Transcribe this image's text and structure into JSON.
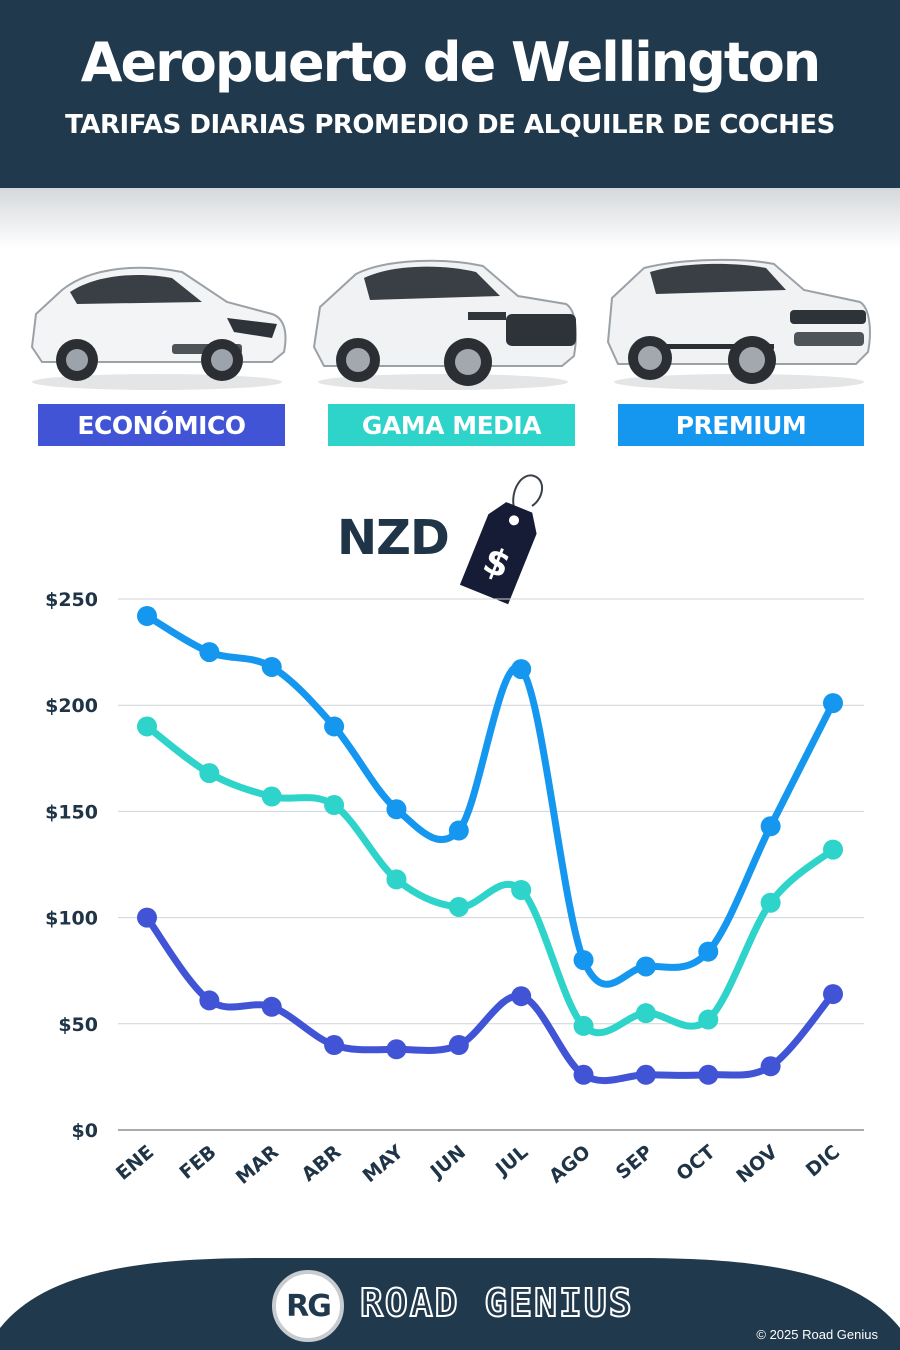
{
  "header": {
    "title": "Aeropuerto de Wellington",
    "subtitle": "TARIFAS DIARIAS PROMEDIO DE ALQUILER DE COCHES"
  },
  "categories": [
    {
      "label": "ECONÓMICO",
      "color": "#4154d6"
    },
    {
      "label": "GAMA MEDIA",
      "color": "#2ed3c9"
    },
    {
      "label": "PREMIUM",
      "color": "#1597f0"
    }
  ],
  "currency": {
    "label": "NZD",
    "tag_symbol": "$"
  },
  "chart_data": {
    "type": "line",
    "x": [
      "ENE",
      "FEB",
      "MAR",
      "ABR",
      "MAY",
      "JUN",
      "JUL",
      "AGO",
      "SEP",
      "OCT",
      "NOV",
      "DIC"
    ],
    "yticks": [
      "$0",
      "$50",
      "$100",
      "$150",
      "$200",
      "$250"
    ],
    "ylim": [
      0,
      250
    ],
    "grid": true,
    "series": [
      {
        "name": "PREMIUM",
        "color": "#1597f0",
        "values": [
          242,
          225,
          218,
          190,
          151,
          141,
          217,
          80,
          77,
          84,
          143,
          201
        ]
      },
      {
        "name": "GAMA MEDIA",
        "color": "#2ed3c9",
        "values": [
          190,
          168,
          157,
          153,
          118,
          105,
          113,
          49,
          55,
          52,
          107,
          132
        ]
      },
      {
        "name": "ECONÓMICO",
        "color": "#4154d6",
        "values": [
          100,
          61,
          58,
          40,
          38,
          40,
          63,
          26,
          26,
          26,
          30,
          64
        ]
      }
    ]
  },
  "footer": {
    "logo": "RG",
    "brand": "ROAD GENIUS",
    "copyright": "© 2025 Road Genius",
    "background": "#21394c"
  }
}
